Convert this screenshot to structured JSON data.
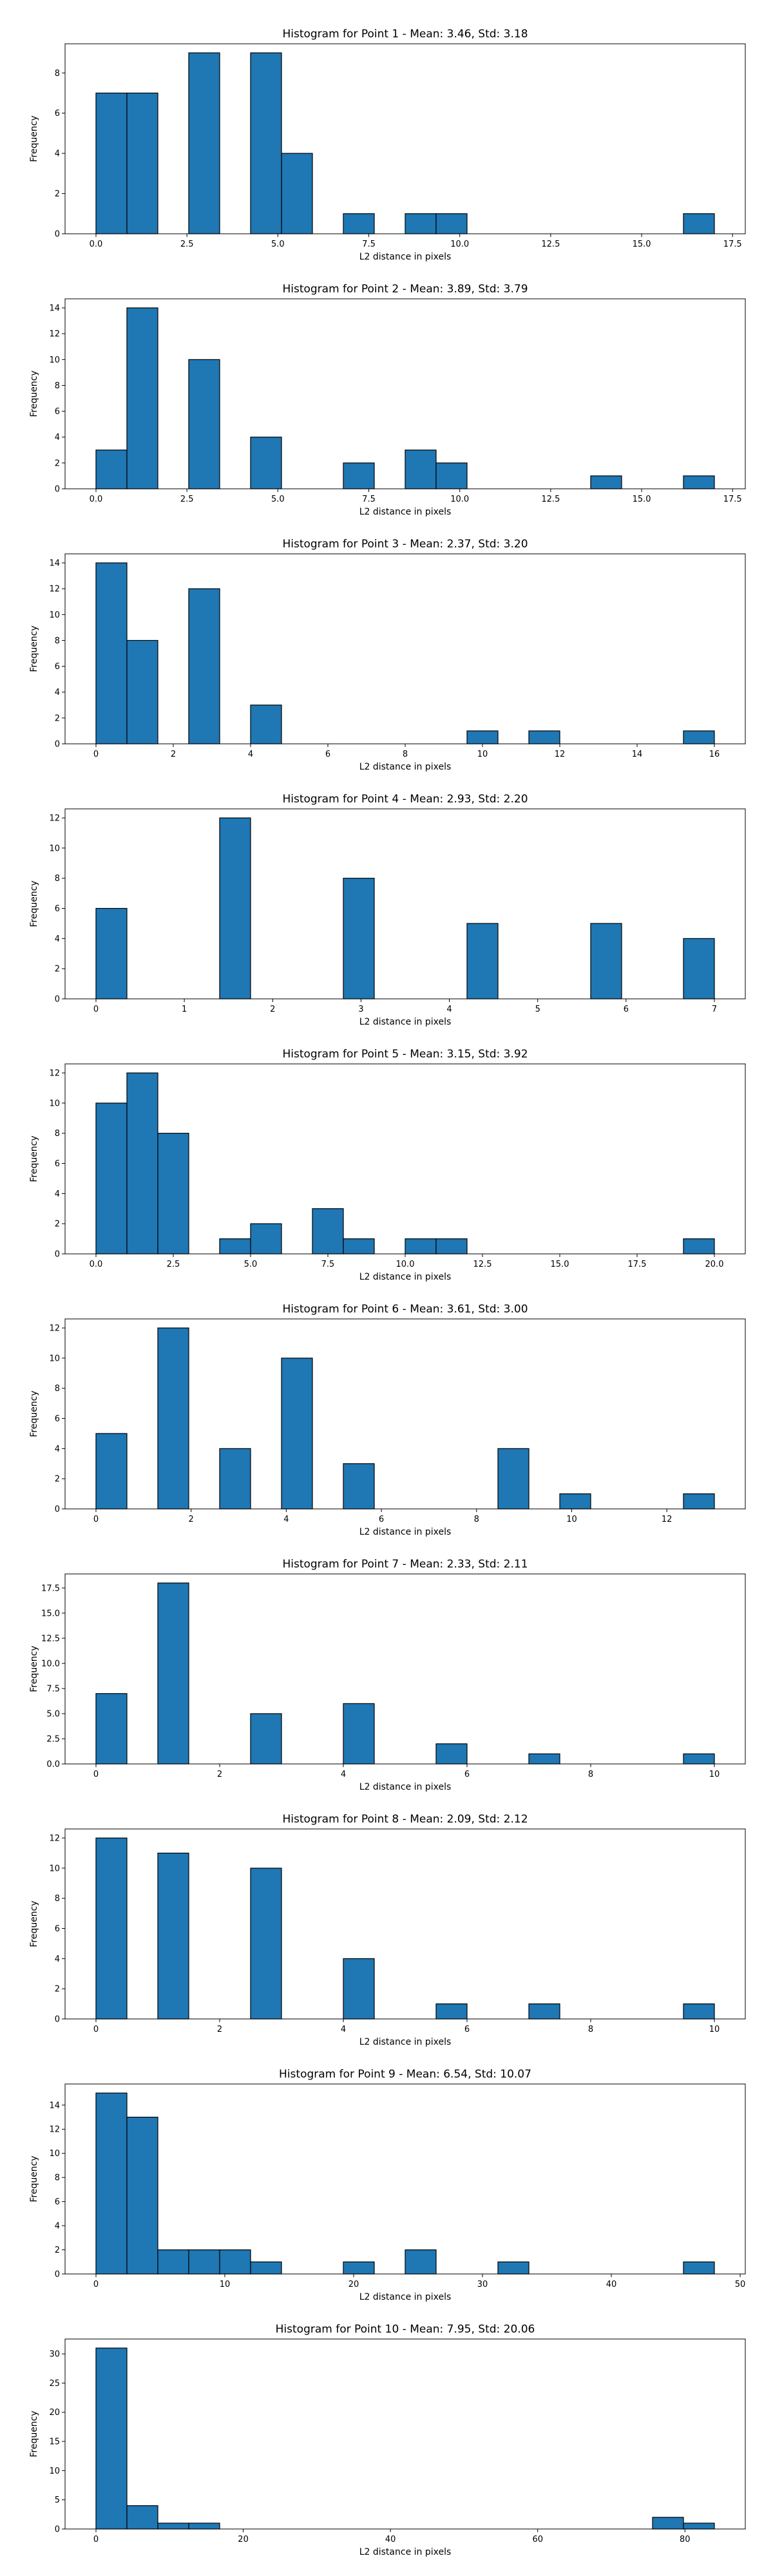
{
  "chart_data": [
    {
      "type": "bar",
      "title": "Histogram for Point 1 - Mean: 3.46, Std: 3.18",
      "xlabel": "L2 distance in pixels",
      "ylabel": "Frequency",
      "xlim": [
        -0.85,
        17.85
      ],
      "ylim": [
        0,
        9.45
      ],
      "xticks": [
        0,
        2.5,
        5,
        7.5,
        10,
        12.5,
        15,
        17.5
      ],
      "xtick_labels": [
        "0.0",
        "2.5",
        "5.0",
        "7.5",
        "10.0",
        "12.5",
        "15.0",
        "17.5"
      ],
      "yticks": [
        0,
        2,
        4,
        6,
        8
      ],
      "ytick_labels": [
        "0",
        "2",
        "4",
        "6",
        "8"
      ],
      "bins": [
        {
          "x0": 0,
          "x1": 0.85,
          "count": 7
        },
        {
          "x0": 0.85,
          "x1": 1.7,
          "count": 7
        },
        {
          "x0": 2.55,
          "x1": 3.4,
          "count": 9
        },
        {
          "x0": 4.25,
          "x1": 5.1,
          "count": 9
        },
        {
          "x0": 5.1,
          "x1": 5.95,
          "count": 4
        },
        {
          "x0": 6.8,
          "x1": 7.65,
          "count": 1
        },
        {
          "x0": 8.5,
          "x1": 9.35,
          "count": 1
        },
        {
          "x0": 9.35,
          "x1": 10.2,
          "count": 1
        },
        {
          "x0": 16.15,
          "x1": 17,
          "count": 1
        }
      ]
    },
    {
      "type": "bar",
      "title": "Histogram for Point 2 - Mean: 3.89, Std: 3.79",
      "xlabel": "L2 distance in pixels",
      "ylabel": "Frequency",
      "xlim": [
        -0.85,
        17.85
      ],
      "ylim": [
        0,
        14.7
      ],
      "xticks": [
        0,
        2.5,
        5,
        7.5,
        10,
        12.5,
        15,
        17.5
      ],
      "xtick_labels": [
        "0.0",
        "2.5",
        "5.0",
        "7.5",
        "10.0",
        "12.5",
        "15.0",
        "17.5"
      ],
      "yticks": [
        0,
        2,
        4,
        6,
        8,
        10,
        12,
        14
      ],
      "ytick_labels": [
        "0",
        "2",
        "4",
        "6",
        "8",
        "10",
        "12",
        "14"
      ],
      "bins": [
        {
          "x0": 0,
          "x1": 0.85,
          "count": 3
        },
        {
          "x0": 0.85,
          "x1": 1.7,
          "count": 14
        },
        {
          "x0": 2.55,
          "x1": 3.4,
          "count": 10
        },
        {
          "x0": 4.25,
          "x1": 5.1,
          "count": 4
        },
        {
          "x0": 6.8,
          "x1": 7.65,
          "count": 2
        },
        {
          "x0": 8.5,
          "x1": 9.35,
          "count": 3
        },
        {
          "x0": 9.35,
          "x1": 10.2,
          "count": 2
        },
        {
          "x0": 13.6,
          "x1": 14.45,
          "count": 1
        },
        {
          "x0": 16.15,
          "x1": 17,
          "count": 1
        }
      ]
    },
    {
      "type": "bar",
      "title": "Histogram for Point 3 - Mean: 2.37, Std: 3.20",
      "xlabel": "L2 distance in pixels",
      "ylabel": "Frequency",
      "xlim": [
        -0.8,
        16.8
      ],
      "ylim": [
        0,
        14.7
      ],
      "xticks": [
        0,
        2,
        4,
        6,
        8,
        10,
        12,
        14,
        16
      ],
      "xtick_labels": [
        "0",
        "2",
        "4",
        "6",
        "8",
        "10",
        "12",
        "14",
        "16"
      ],
      "yticks": [
        0,
        2,
        4,
        6,
        8,
        10,
        12,
        14
      ],
      "ytick_labels": [
        "0",
        "2",
        "4",
        "6",
        "8",
        "10",
        "12",
        "14"
      ],
      "bins": [
        {
          "x0": 0,
          "x1": 0.8,
          "count": 14
        },
        {
          "x0": 0.8,
          "x1": 1.6,
          "count": 8
        },
        {
          "x0": 2.4,
          "x1": 3.2,
          "count": 12
        },
        {
          "x0": 4,
          "x1": 4.8,
          "count": 3
        },
        {
          "x0": 9.6,
          "x1": 10.4,
          "count": 1
        },
        {
          "x0": 11.2,
          "x1": 12,
          "count": 1
        },
        {
          "x0": 15.2,
          "x1": 16,
          "count": 1
        }
      ]
    },
    {
      "type": "bar",
      "title": "Histogram for Point 4 - Mean: 2.93, Std: 2.20",
      "xlabel": "L2 distance in pixels",
      "ylabel": "Frequency",
      "xlim": [
        -0.35,
        7.35
      ],
      "ylim": [
        0,
        12.6
      ],
      "xticks": [
        0,
        1,
        2,
        3,
        4,
        5,
        6,
        7
      ],
      "xtick_labels": [
        "0",
        "1",
        "2",
        "3",
        "4",
        "5",
        "6",
        "7"
      ],
      "yticks": [
        0,
        2,
        4,
        6,
        8,
        10,
        12
      ],
      "ytick_labels": [
        "0",
        "2",
        "4",
        "6",
        "8",
        "10",
        "12"
      ],
      "bins": [
        {
          "x0": 0,
          "x1": 0.35,
          "count": 6
        },
        {
          "x0": 1.4,
          "x1": 1.75,
          "count": 12
        },
        {
          "x0": 2.8,
          "x1": 3.15,
          "count": 8
        },
        {
          "x0": 4.2,
          "x1": 4.55,
          "count": 5
        },
        {
          "x0": 5.6,
          "x1": 5.95,
          "count": 5
        },
        {
          "x0": 6.65,
          "x1": 7,
          "count": 4
        }
      ]
    },
    {
      "type": "bar",
      "title": "Histogram for Point 5 - Mean: 3.15, Std: 3.92",
      "xlabel": "L2 distance in pixels",
      "ylabel": "Frequency",
      "xlim": [
        -1,
        21
      ],
      "ylim": [
        0,
        12.6
      ],
      "xticks": [
        0,
        2.5,
        5,
        7.5,
        10,
        12.5,
        15,
        17.5,
        20
      ],
      "xtick_labels": [
        "0.0",
        "2.5",
        "5.0",
        "7.5",
        "10.0",
        "12.5",
        "15.0",
        "17.5",
        "20.0"
      ],
      "yticks": [
        0,
        2,
        4,
        6,
        8,
        10,
        12
      ],
      "ytick_labels": [
        "0",
        "2",
        "4",
        "6",
        "8",
        "10",
        "12"
      ],
      "bins": [
        {
          "x0": 0,
          "x1": 1,
          "count": 10
        },
        {
          "x0": 1,
          "x1": 2,
          "count": 12
        },
        {
          "x0": 2,
          "x1": 3,
          "count": 8
        },
        {
          "x0": 4,
          "x1": 5,
          "count": 1
        },
        {
          "x0": 5,
          "x1": 6,
          "count": 2
        },
        {
          "x0": 7,
          "x1": 8,
          "count": 3
        },
        {
          "x0": 8,
          "x1": 9,
          "count": 1
        },
        {
          "x0": 10,
          "x1": 11,
          "count": 1
        },
        {
          "x0": 11,
          "x1": 12,
          "count": 1
        },
        {
          "x0": 19,
          "x1": 20,
          "count": 1
        }
      ]
    },
    {
      "type": "bar",
      "title": "Histogram for Point 6 - Mean: 3.61, Std: 3.00",
      "xlabel": "L2 distance in pixels",
      "ylabel": "Frequency",
      "xlim": [
        -0.65,
        13.65
      ],
      "ylim": [
        0,
        12.6
      ],
      "xticks": [
        0,
        2,
        4,
        6,
        8,
        10,
        12
      ],
      "xtick_labels": [
        "0",
        "2",
        "4",
        "6",
        "8",
        "10",
        "12"
      ],
      "yticks": [
        0,
        2,
        4,
        6,
        8,
        10,
        12
      ],
      "ytick_labels": [
        "0",
        "2",
        "4",
        "6",
        "8",
        "10",
        "12"
      ],
      "bins": [
        {
          "x0": 0,
          "x1": 0.65,
          "count": 5
        },
        {
          "x0": 1.3,
          "x1": 1.95,
          "count": 12
        },
        {
          "x0": 2.6,
          "x1": 3.25,
          "count": 4
        },
        {
          "x0": 3.9,
          "x1": 4.55,
          "count": 10
        },
        {
          "x0": 5.2,
          "x1": 5.85,
          "count": 3
        },
        {
          "x0": 8.45,
          "x1": 9.1,
          "count": 4
        },
        {
          "x0": 9.75,
          "x1": 10.4,
          "count": 1
        },
        {
          "x0": 12.35,
          "x1": 13,
          "count": 1
        }
      ]
    },
    {
      "type": "bar",
      "title": "Histogram for Point 7 - Mean: 2.33, Std: 2.11",
      "xlabel": "L2 distance in pixels",
      "ylabel": "Frequency",
      "xlim": [
        -0.5,
        10.5
      ],
      "ylim": [
        0,
        18.9
      ],
      "xticks": [
        0,
        2,
        4,
        6,
        8,
        10
      ],
      "xtick_labels": [
        "0",
        "2",
        "4",
        "6",
        "8",
        "10"
      ],
      "yticks": [
        0,
        2.5,
        5,
        7.5,
        10,
        12.5,
        15,
        17.5
      ],
      "ytick_labels": [
        "0.0",
        "2.5",
        "5.0",
        "7.5",
        "10.0",
        "12.5",
        "15.0",
        "17.5"
      ],
      "bins": [
        {
          "x0": 0,
          "x1": 0.5,
          "count": 7
        },
        {
          "x0": 1,
          "x1": 1.5,
          "count": 18
        },
        {
          "x0": 2.5,
          "x1": 3,
          "count": 5
        },
        {
          "x0": 4,
          "x1": 4.5,
          "count": 6
        },
        {
          "x0": 5.5,
          "x1": 6,
          "count": 2
        },
        {
          "x0": 7,
          "x1": 7.5,
          "count": 1
        },
        {
          "x0": 9.5,
          "x1": 10,
          "count": 1
        }
      ]
    },
    {
      "type": "bar",
      "title": "Histogram for Point 8 - Mean: 2.09, Std: 2.12",
      "xlabel": "L2 distance in pixels",
      "ylabel": "Frequency",
      "xlim": [
        -0.5,
        10.5
      ],
      "ylim": [
        0,
        12.6
      ],
      "xticks": [
        0,
        2,
        4,
        6,
        8,
        10
      ],
      "xtick_labels": [
        "0",
        "2",
        "4",
        "6",
        "8",
        "10"
      ],
      "yticks": [
        0,
        2,
        4,
        6,
        8,
        10,
        12
      ],
      "ytick_labels": [
        "0",
        "2",
        "4",
        "6",
        "8",
        "10",
        "12"
      ],
      "bins": [
        {
          "x0": 0,
          "x1": 0.5,
          "count": 12
        },
        {
          "x0": 1,
          "x1": 1.5,
          "count": 11
        },
        {
          "x0": 2.5,
          "x1": 3,
          "count": 10
        },
        {
          "x0": 4,
          "x1": 4.5,
          "count": 4
        },
        {
          "x0": 5.5,
          "x1": 6,
          "count": 1
        },
        {
          "x0": 7,
          "x1": 7.5,
          "count": 1
        },
        {
          "x0": 9.5,
          "x1": 10,
          "count": 1
        }
      ]
    },
    {
      "type": "bar",
      "title": "Histogram for Point 9 - Mean: 6.54, Std: 10.07",
      "xlabel": "L2 distance in pixels",
      "ylabel": "Frequency",
      "xlim": [
        -2.4,
        50.4
      ],
      "ylim": [
        0,
        15.75
      ],
      "xticks": [
        0,
        10,
        20,
        30,
        40,
        50
      ],
      "xtick_labels": [
        "0",
        "10",
        "20",
        "30",
        "40",
        "50"
      ],
      "yticks": [
        0,
        2,
        4,
        6,
        8,
        10,
        12,
        14
      ],
      "ytick_labels": [
        "0",
        "2",
        "4",
        "6",
        "8",
        "10",
        "12",
        "14"
      ],
      "bins": [
        {
          "x0": 0,
          "x1": 2.4,
          "count": 15
        },
        {
          "x0": 2.4,
          "x1": 4.8,
          "count": 13
        },
        {
          "x0": 4.8,
          "x1": 7.2,
          "count": 2
        },
        {
          "x0": 7.2,
          "x1": 9.6,
          "count": 2
        },
        {
          "x0": 9.6,
          "x1": 12,
          "count": 2
        },
        {
          "x0": 12,
          "x1": 14.4,
          "count": 1
        },
        {
          "x0": 19.2,
          "x1": 21.6,
          "count": 1
        },
        {
          "x0": 24,
          "x1": 26.4,
          "count": 2
        },
        {
          "x0": 31.2,
          "x1": 33.6,
          "count": 1
        },
        {
          "x0": 45.6,
          "x1": 48,
          "count": 1
        }
      ]
    },
    {
      "type": "bar",
      "title": "Histogram for Point 10 - Mean: 7.95, Std: 20.06",
      "xlabel": "L2 distance in pixels",
      "ylabel": "Frequency",
      "xlim": [
        -4.2,
        88.2
      ],
      "ylim": [
        0,
        32.55
      ],
      "xticks": [
        0,
        20,
        40,
        60,
        80
      ],
      "xtick_labels": [
        "0",
        "20",
        "40",
        "60",
        "80"
      ],
      "yticks": [
        0,
        5,
        10,
        15,
        20,
        25,
        30
      ],
      "ytick_labels": [
        "0",
        "5",
        "10",
        "15",
        "20",
        "25",
        "30"
      ],
      "bins": [
        {
          "x0": 0,
          "x1": 4.2,
          "count": 31
        },
        {
          "x0": 4.2,
          "x1": 8.4,
          "count": 4
        },
        {
          "x0": 8.4,
          "x1": 12.6,
          "count": 1
        },
        {
          "x0": 12.6,
          "x1": 16.8,
          "count": 1
        },
        {
          "x0": 75.6,
          "x1": 79.8,
          "count": 2
        },
        {
          "x0": 79.8,
          "x1": 84,
          "count": 1
        }
      ]
    }
  ],
  "colors": {
    "bar_fill": "#1f77b4",
    "bar_edge": "#000000",
    "axes": "#000000",
    "background": "#ffffff"
  }
}
